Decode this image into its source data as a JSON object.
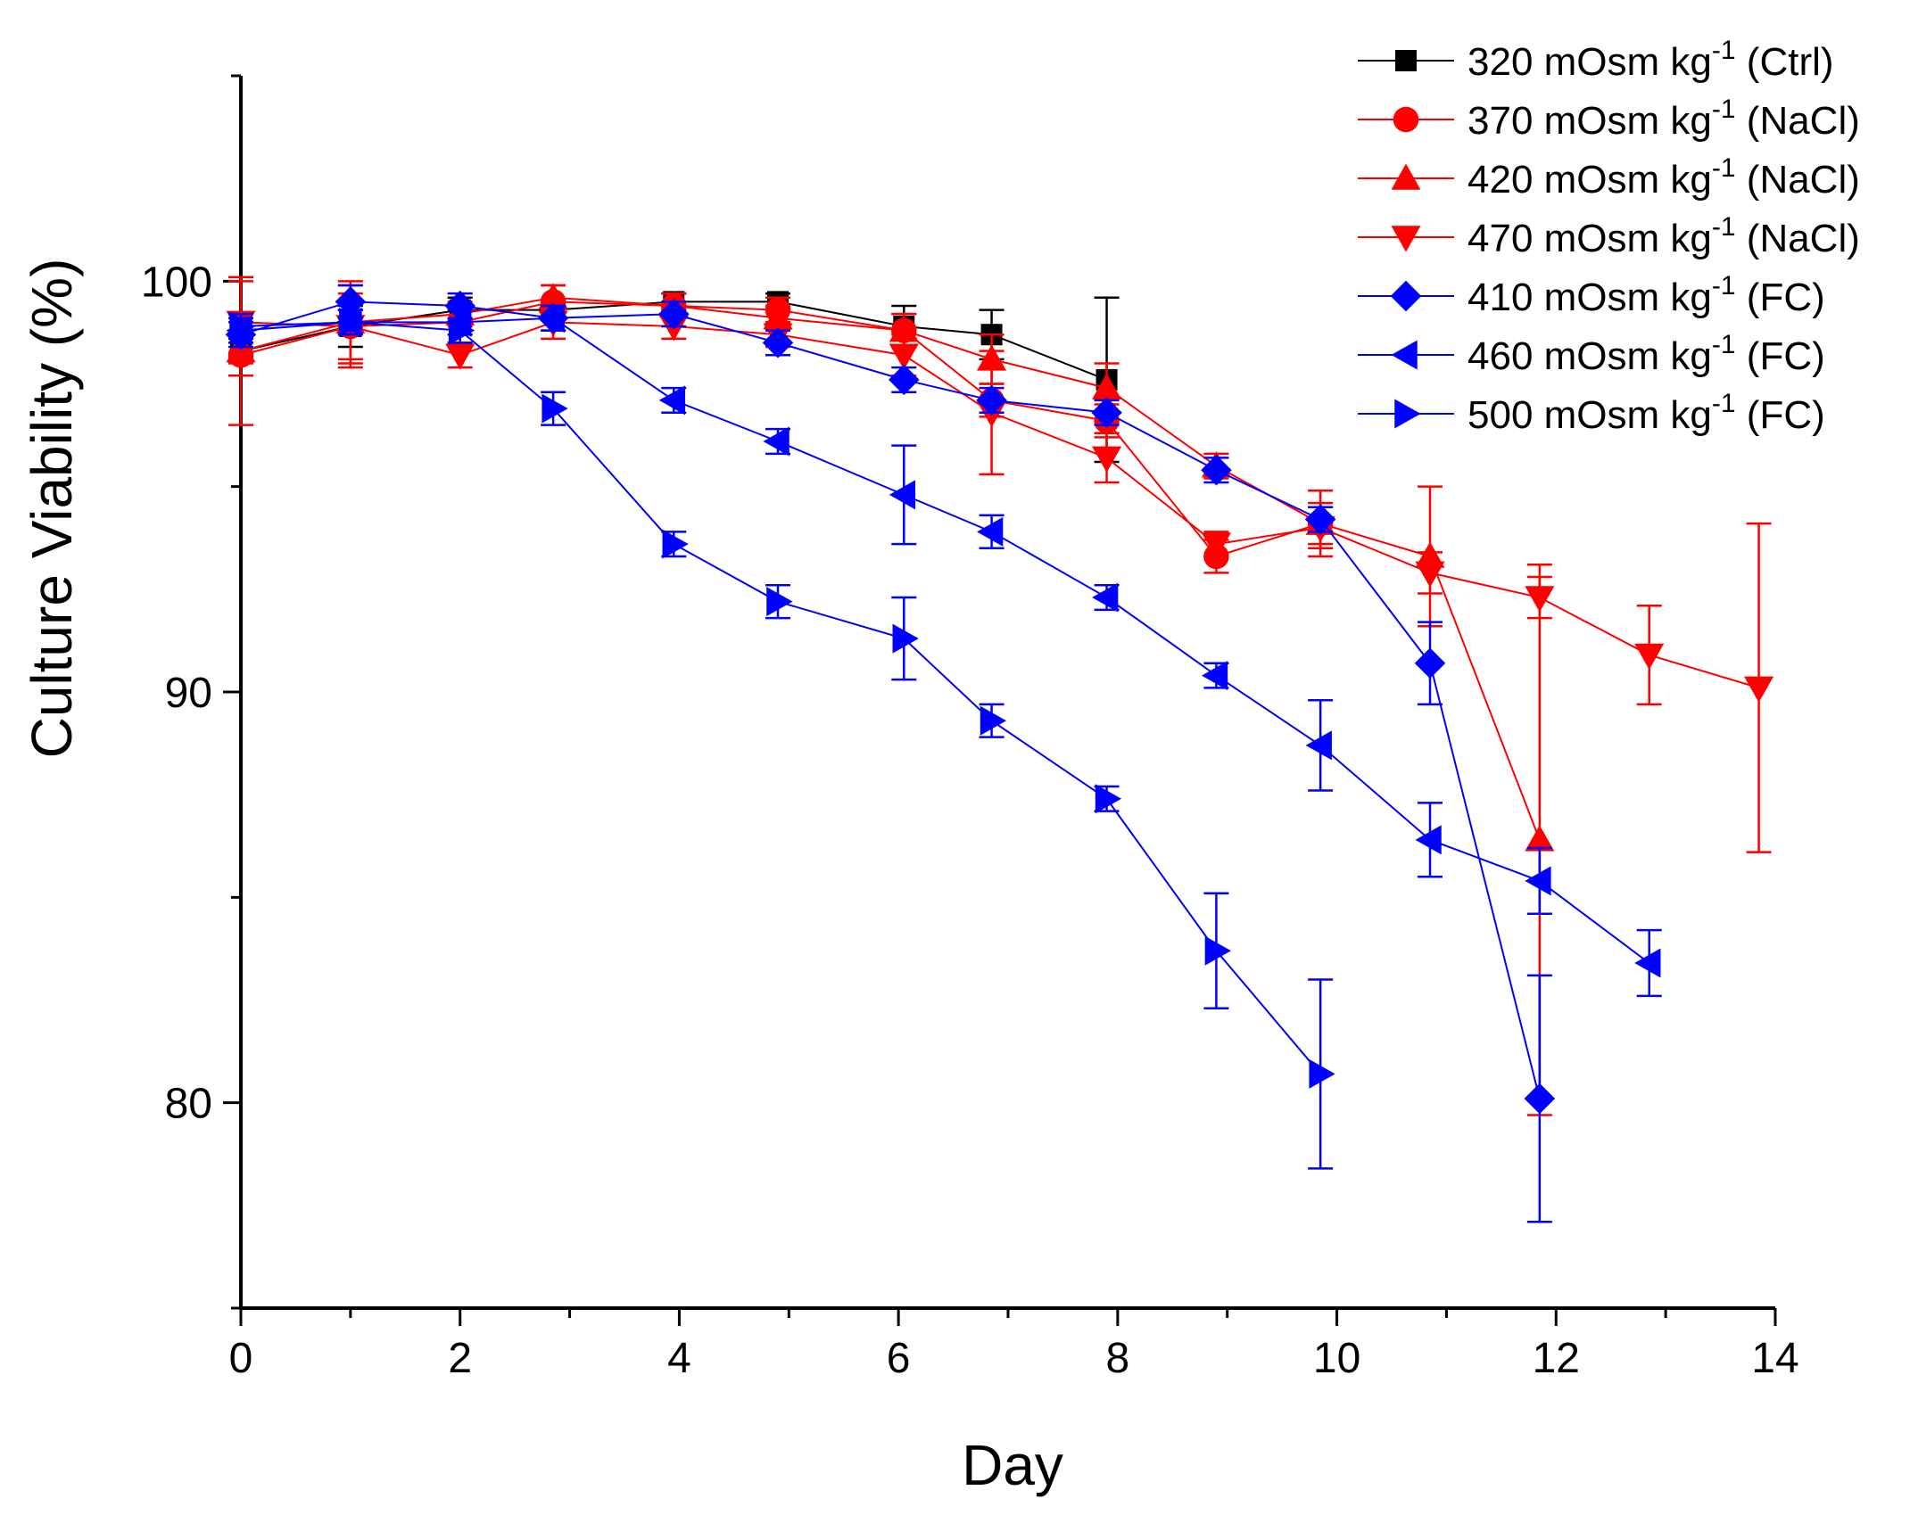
{
  "chart_data": {
    "type": "line",
    "title": "",
    "xlabel": "Day",
    "ylabel": "Culture Viability (%)",
    "xlim": [
      0,
      14
    ],
    "ylim": [
      75,
      105
    ],
    "xticks": [
      0,
      2,
      4,
      6,
      8,
      10,
      12,
      14
    ],
    "yticks": [
      80,
      90,
      100
    ],
    "grid": false,
    "legend_position": "top-right",
    "legend_unit_text": "mOsm kg",
    "legend_unit_sup": "-1",
    "series": [
      {
        "name": "320 mOsm kg-1 (Ctrl)",
        "legend_value": "320",
        "legend_suffix": "(Ctrl)",
        "color": "#000000",
        "marker": "square",
        "x": [
          0,
          1,
          2,
          2.85,
          3.95,
          4.9,
          6.05,
          6.85,
          7.9
        ],
        "y": [
          98.3,
          98.9,
          99.3,
          99.3,
          99.5,
          99.5,
          98.9,
          98.7,
          97.6
        ],
        "err": [
          0.2,
          0.5,
          0.3,
          0.2,
          0.2,
          0.2,
          0.5,
          0.6,
          2.0
        ]
      },
      {
        "name": "370 mOsm kg-1 (NaCl)",
        "legend_value": "370",
        "legend_suffix": "(NaCl)",
        "color": "#ff0000",
        "marker": "circle",
        "x": [
          0,
          1,
          2,
          2.85,
          3.95,
          4.9,
          6.05,
          6.85,
          7.9,
          8.9,
          9.85
        ],
        "y": [
          98.2,
          98.9,
          99.0,
          99.5,
          99.4,
          99.3,
          98.8,
          97.1,
          96.6,
          93.3,
          94.1
        ],
        "err": [
          0.5,
          0.8,
          0.3,
          0.4,
          0.3,
          0.3,
          0.4,
          0.4,
          0.4,
          0.4,
          0.5
        ]
      },
      {
        "name": "420 mOsm kg-1 (NaCl)",
        "legend_value": "420",
        "legend_suffix": "(NaCl)",
        "color": "#ff0000",
        "marker": "triangle-up",
        "x": [
          0,
          1,
          2,
          2.85,
          3.95,
          4.9,
          6.05,
          6.85,
          7.9,
          8.9,
          9.85,
          10.85,
          11.85
        ],
        "y": [
          98.3,
          99.0,
          99.2,
          99.6,
          99.4,
          99.1,
          98.8,
          98.1,
          97.4,
          95.5,
          94.1,
          93.3,
          86.4
        ],
        "err": [
          1.8,
          1.0,
          0.3,
          0.3,
          0.3,
          0.3,
          0.4,
          0.6,
          0.6,
          0.3,
          0.8,
          1.7,
          6.7
        ]
      },
      {
        "name": "470 mOsm kg-1 (NaCl)",
        "legend_value": "470",
        "legend_suffix": "(NaCl)",
        "color": "#ff0000",
        "marker": "triangle-down",
        "x": [
          0,
          1,
          2,
          2.85,
          3.95,
          4.9,
          6.05,
          6.85,
          7.9,
          8.9,
          9.85,
          10.85,
          11.85,
          12.85,
          13.85
        ],
        "y": [
          99.0,
          98.9,
          98.2,
          99.0,
          98.9,
          98.7,
          98.2,
          96.8,
          95.7,
          93.6,
          94.0,
          92.9,
          92.3,
          90.9,
          90.1
        ],
        "err": [
          1.0,
          1.0,
          0.3,
          0.4,
          0.3,
          0.3,
          0.5,
          1.5,
          0.6,
          0.3,
          0.5,
          0.5,
          0.5,
          1.2,
          4.0
        ]
      },
      {
        "name": "410 mOsm kg-1 (FC)",
        "legend_value": "410",
        "legend_suffix": "(FC)",
        "color": "#0000ff",
        "marker": "diamond",
        "x": [
          0,
          1,
          2,
          2.85,
          3.95,
          4.9,
          6.05,
          6.85,
          7.9,
          8.9,
          9.85,
          10.85,
          11.85
        ],
        "y": [
          98.7,
          99.5,
          99.4,
          99.1,
          99.2,
          98.5,
          97.6,
          97.1,
          96.8,
          95.4,
          94.2,
          90.7,
          80.1
        ],
        "err": [
          0.3,
          0.4,
          0.3,
          0.3,
          0.3,
          0.3,
          0.3,
          0.3,
          0.3,
          0.3,
          0.3,
          1.0,
          3.0
        ]
      },
      {
        "name": "460 mOsm kg-1 (FC)",
        "legend_value": "460",
        "legend_suffix": "(FC)",
        "color": "#0000ff",
        "marker": "triangle-left",
        "x": [
          0,
          1,
          2,
          2.85,
          3.95,
          4.9,
          6.05,
          6.85,
          7.9,
          8.9,
          9.85,
          10.85,
          11.85,
          12.85
        ],
        "y": [
          98.8,
          99.0,
          99.0,
          99.1,
          97.1,
          96.1,
          94.8,
          93.9,
          92.3,
          90.4,
          88.7,
          86.4,
          85.4,
          83.4
        ],
        "err": [
          0.3,
          0.3,
          0.3,
          0.3,
          0.3,
          0.3,
          1.2,
          0.4,
          0.3,
          0.3,
          1.1,
          0.9,
          0.8,
          0.8
        ]
      },
      {
        "name": "500 mOsm kg-1 (FC)",
        "legend_value": "500",
        "legend_suffix": "(FC)",
        "color": "#0000ff",
        "marker": "triangle-right",
        "x": [
          0,
          1,
          2,
          2.85,
          3.95,
          4.9,
          6.05,
          6.85,
          7.9,
          8.9,
          9.85
        ],
        "y": [
          98.9,
          99.0,
          98.8,
          96.9,
          93.6,
          92.2,
          91.3,
          89.3,
          87.4,
          83.7,
          80.7
        ],
        "err": [
          0.3,
          0.3,
          0.3,
          0.4,
          0.3,
          0.4,
          1.0,
          0.4,
          0.3,
          1.4,
          2.3
        ]
      }
    ]
  }
}
